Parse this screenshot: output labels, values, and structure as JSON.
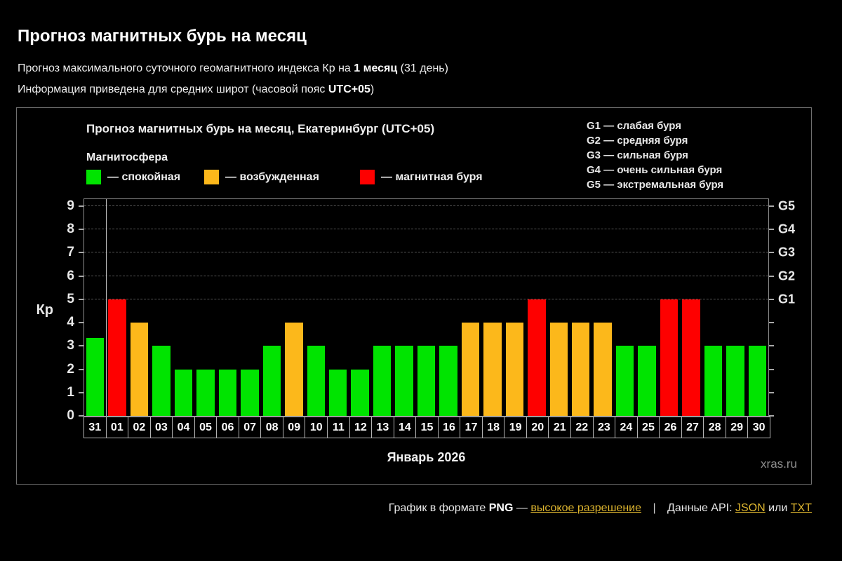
{
  "header": {
    "title": "Прогноз магнитных бурь на месяц",
    "line1": {
      "pre": "Прогноз максимального суточного геомагнитного индекса Кр на ",
      "bold": "1 месяц",
      "post": " (31 день)"
    },
    "line2": {
      "pre": "Информация приведена для средних широт (часовой пояс ",
      "bold": "UTC+05",
      "post": ")"
    }
  },
  "palette": {
    "quiet": "#00e400",
    "excited": "#fcb81b",
    "storm": "#fe0000",
    "link": "#ddb52f",
    "background": "#000000",
    "gridline": "#565656"
  },
  "panel": {
    "legend_title": "Магнитосфера",
    "legend": [
      {
        "status": "quiet",
        "label": "— спокойная"
      },
      {
        "status": "excited",
        "label": "— возбужденная"
      },
      {
        "status": "storm",
        "label": "— магнитная буря"
      }
    ],
    "g_scale": [
      "G1 — слабая буря",
      "G2 — средняя буря",
      "G3 — сильная буря",
      "G4 — очень сильная буря",
      "G5 — экстремальная буря"
    ],
    "watermark": "xras.ru"
  },
  "chart_data": {
    "type": "bar",
    "title": "Прогноз магнитных бурь на месяц, Екатеринбург (UTC+05)",
    "xlabel": "Январь 2026",
    "ylabel": "Кр",
    "ylim": [
      0,
      9.3
    ],
    "yticks": [
      0,
      1,
      2,
      3,
      4,
      5,
      6,
      7,
      8,
      9
    ],
    "gridlines": [
      5,
      6,
      7,
      8,
      9
    ],
    "right_axis": [
      {
        "label": "G1",
        "value": 5
      },
      {
        "label": "G2",
        "value": 6
      },
      {
        "label": "G3",
        "value": 7
      },
      {
        "label": "G4",
        "value": 8
      },
      {
        "label": "G5",
        "value": 9
      }
    ],
    "month_separator_after_index": 0,
    "days": [
      {
        "day": "31",
        "kp": 3.33,
        "status": "quiet"
      },
      {
        "day": "01",
        "kp": 5,
        "status": "storm"
      },
      {
        "day": "02",
        "kp": 4,
        "status": "excited"
      },
      {
        "day": "03",
        "kp": 3,
        "status": "quiet"
      },
      {
        "day": "04",
        "kp": 2,
        "status": "quiet"
      },
      {
        "day": "05",
        "kp": 2,
        "status": "quiet"
      },
      {
        "day": "06",
        "kp": 2,
        "status": "quiet"
      },
      {
        "day": "07",
        "kp": 2,
        "status": "quiet"
      },
      {
        "day": "08",
        "kp": 3,
        "status": "quiet"
      },
      {
        "day": "09",
        "kp": 4,
        "status": "excited"
      },
      {
        "day": "10",
        "kp": 3,
        "status": "quiet"
      },
      {
        "day": "11",
        "kp": 2,
        "status": "quiet"
      },
      {
        "day": "12",
        "kp": 2,
        "status": "quiet"
      },
      {
        "day": "13",
        "kp": 3,
        "status": "quiet"
      },
      {
        "day": "14",
        "kp": 3,
        "status": "quiet"
      },
      {
        "day": "15",
        "kp": 3,
        "status": "quiet"
      },
      {
        "day": "16",
        "kp": 3,
        "status": "quiet"
      },
      {
        "day": "17",
        "kp": 4,
        "status": "excited"
      },
      {
        "day": "18",
        "kp": 4,
        "status": "excited"
      },
      {
        "day": "19",
        "kp": 4,
        "status": "excited"
      },
      {
        "day": "20",
        "kp": 5,
        "status": "storm"
      },
      {
        "day": "21",
        "kp": 4,
        "status": "excited"
      },
      {
        "day": "22",
        "kp": 4,
        "status": "excited"
      },
      {
        "day": "23",
        "kp": 4,
        "status": "excited"
      },
      {
        "day": "24",
        "kp": 3,
        "status": "quiet"
      },
      {
        "day": "25",
        "kp": 3,
        "status": "quiet"
      },
      {
        "day": "26",
        "kp": 5,
        "status": "storm"
      },
      {
        "day": "27",
        "kp": 5,
        "status": "storm"
      },
      {
        "day": "28",
        "kp": 3,
        "status": "quiet"
      },
      {
        "day": "29",
        "kp": 3,
        "status": "quiet"
      },
      {
        "day": "30",
        "kp": 3,
        "status": "quiet"
      }
    ]
  },
  "footer": {
    "text1": "График в формате",
    "format": "PNG",
    "dash": "—",
    "link_hires": "высокое разрешение",
    "sep": "|",
    "text2": "Данные API:",
    "link_json": "JSON",
    "text_or": "или",
    "link_txt": "TXT"
  }
}
